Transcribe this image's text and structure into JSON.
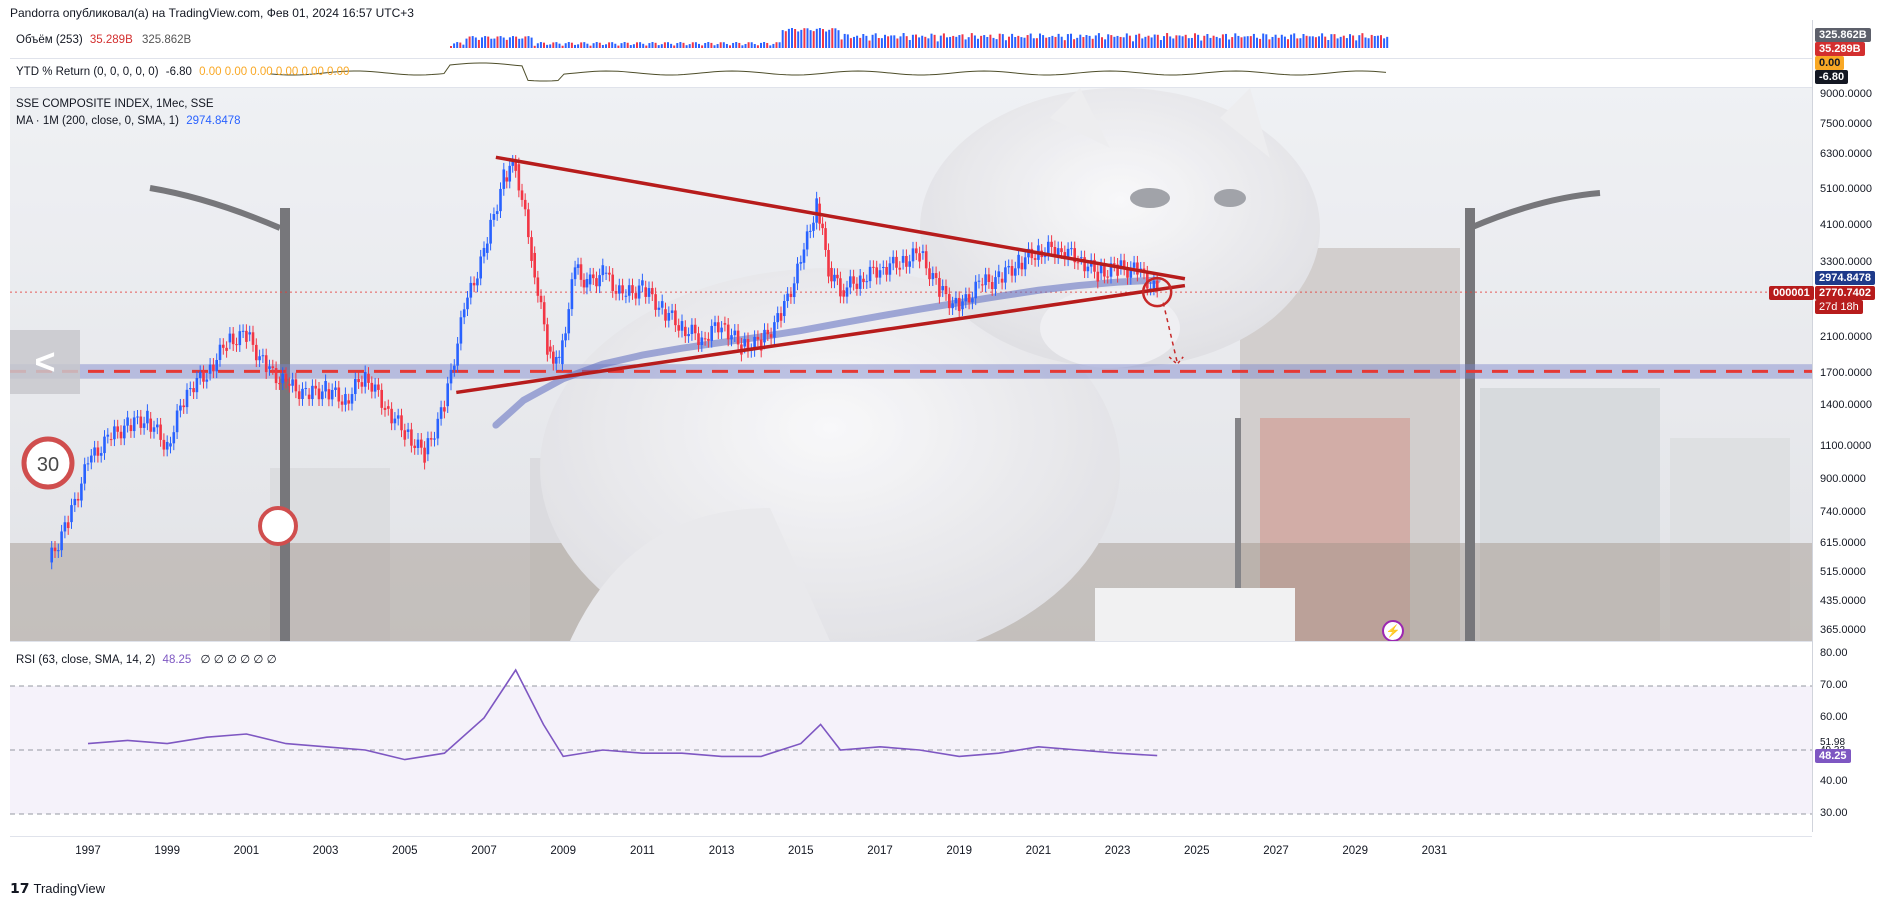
{
  "header": {
    "text": "Pandorra опубликовал(а) на TradingView.com, Фев 01, 2024 16:57 UTC+3"
  },
  "volume": {
    "label": "Объём (253)",
    "value1": "35.289B",
    "value2": "325.862B",
    "badges": [
      "325.862B",
      "35.289B"
    ]
  },
  "ytd": {
    "label": "YTD % Return (0, 0, 0, 0, 0)",
    "value_main": "-6.80",
    "values_rest": "0.00  0.00  0.00  0.00  0.00  0.00",
    "badges": [
      "0.00",
      "-6.80"
    ]
  },
  "main": {
    "title": "SSE COMPOSITE INDEX, 1Мес, SSE",
    "ma_label": "MA · 1M (200, close, 0, SMA, 1)",
    "ma_value": "2974.8478",
    "price_badges": {
      "ma": "2974.8478",
      "symbol": "000001",
      "last": "2770.7402",
      "countdown": "27d 18h"
    }
  },
  "rsi": {
    "label": "RSI (63, close, SMA, 14, 2)",
    "value": "48.25",
    "extra": "∅ ∅ ∅ ∅ ∅ ∅",
    "ticks": [
      "80.00",
      "70.00",
      "60.00",
      "51.98",
      "49.33",
      "40.00",
      "30.00"
    ],
    "badge": "48.25"
  },
  "footer": {
    "brand": "TradingView"
  },
  "nav": {
    "back_glyph": "<"
  },
  "colors": {
    "up": "#2962ff",
    "down": "#f23645",
    "trend": "#b71c1c",
    "ma": "#5c6bc0",
    "rsi": "#7e57c2"
  },
  "chart_data": {
    "type": "candlestick",
    "title": "SSE COMPOSITE INDEX, 1Мес, SSE",
    "x_ticks": [
      "1997",
      "1999",
      "2001",
      "2003",
      "2005",
      "2007",
      "2009",
      "2011",
      "2013",
      "2015",
      "2017",
      "2019",
      "2021",
      "2023",
      "2025",
      "2027",
      "2029",
      "2031"
    ],
    "y_scale": "log",
    "y_ticks": [
      9000,
      7500,
      6300,
      5100,
      4100,
      3300,
      2100,
      1700,
      1400,
      1100,
      900,
      740,
      615,
      515,
      435,
      365
    ],
    "y_ticks_labels": [
      "9000.0000",
      "7500.0000",
      "6300.0000",
      "5100.0000",
      "4100.0000",
      "3300.0000",
      "2100.0000",
      "1700.0000",
      "1400.0000",
      "1100.0000",
      "900.0000",
      "740.0000",
      "615.0000",
      "515.0000",
      "435.0000",
      "365.0000"
    ],
    "series": [
      {
        "name": "SSE COMPOSITE INDEX",
        "x": [
          1996.0,
          1996.5,
          1997.0,
          1997.5,
          1998.0,
          1998.5,
          1999.0,
          1999.5,
          2000.0,
          2000.5,
          2001.0,
          2001.5,
          2002.0,
          2002.5,
          2003.0,
          2003.5,
          2004.0,
          2004.5,
          2005.0,
          2005.5,
          2006.0,
          2006.5,
          2007.0,
          2007.5,
          2007.8,
          2008.2,
          2008.6,
          2008.9,
          2009.3,
          2009.6,
          2010.0,
          2010.5,
          2011.0,
          2011.5,
          2012.0,
          2012.5,
          2013.0,
          2013.5,
          2014.0,
          2014.5,
          2015.0,
          2015.4,
          2015.7,
          2016.0,
          2016.5,
          2017.0,
          2017.5,
          2018.0,
          2018.5,
          2019.0,
          2019.5,
          2020.0,
          2020.5,
          2021.0,
          2021.5,
          2022.0,
          2022.5,
          2023.0,
          2023.5,
          2024.0
        ],
        "y": [
          550,
          700,
          1000,
          1150,
          1250,
          1300,
          1100,
          1550,
          1700,
          2050,
          2150,
          1750,
          1600,
          1500,
          1550,
          1450,
          1700,
          1400,
          1200,
          1050,
          1400,
          2500,
          3500,
          5500,
          5950,
          3500,
          2000,
          1800,
          3200,
          2900,
          3100,
          2700,
          2850,
          2500,
          2250,
          2100,
          2300,
          2000,
          2050,
          2400,
          3300,
          4700,
          3200,
          2800,
          3000,
          3200,
          3300,
          3500,
          2800,
          2500,
          2900,
          3000,
          3300,
          3550,
          3600,
          3400,
          3100,
          3200,
          3150,
          2770
        ]
      },
      {
        "name": "MA · 1M (200, close, 0, SMA, 1)",
        "x": [
          2007.3,
          2008,
          2009,
          2010,
          2011,
          2012,
          2013,
          2014,
          2015,
          2016,
          2017,
          2018,
          2019,
          2020,
          2021,
          2022,
          2023,
          2024
        ],
        "y": [
          1250,
          1450,
          1650,
          1800,
          1900,
          1980,
          2050,
          2120,
          2200,
          2300,
          2400,
          2500,
          2600,
          2700,
          2800,
          2880,
          2940,
          2975
        ]
      }
    ],
    "trendlines": [
      {
        "from": [
          2007.3,
          6200
        ],
        "to": [
          2024.7,
          3000
        ]
      },
      {
        "from": [
          2006.3,
          1520
        ],
        "to": [
          2024.7,
          2880
        ]
      }
    ],
    "support_band": [
      1650,
      1800
    ],
    "rsi": {
      "x": [
        1997,
        1998,
        1999,
        2000,
        2001,
        2002,
        2003,
        2004,
        2005,
        2006,
        2007,
        2007.8,
        2008.5,
        2009,
        2010,
        2011,
        2012,
        2013,
        2014,
        2015,
        2015.5,
        2016,
        2017,
        2018,
        2019,
        2020,
        2021,
        2022,
        2023,
        2024
      ],
      "y": [
        52,
        53,
        52,
        54,
        55,
        52,
        51,
        50,
        47,
        49,
        60,
        75,
        58,
        48,
        50,
        49,
        49,
        48,
        48,
        52,
        58,
        50,
        51,
        50,
        48,
        49,
        51,
        50,
        49,
        48.25
      ]
    }
  }
}
